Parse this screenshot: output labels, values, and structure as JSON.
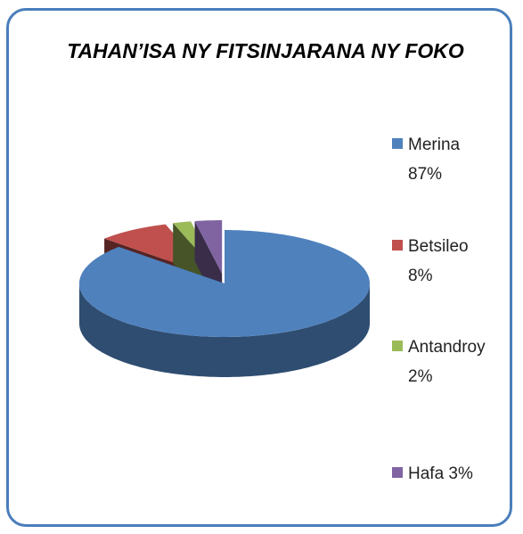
{
  "chart_data": {
    "type": "pie3d",
    "title": "TAHAN’ISA NY FITSINJARANA NY FOKO",
    "categories": [
      "Merina",
      "Betsileo",
      "Antandroy",
      "Hafa"
    ],
    "values": [
      87,
      8,
      2,
      3
    ],
    "value_labels": [
      "87%",
      "8%",
      "2%",
      "3%"
    ],
    "colors": [
      "#4f81bd",
      "#c0504d",
      "#9bbb59",
      "#8064a2"
    ],
    "legend": "right"
  }
}
